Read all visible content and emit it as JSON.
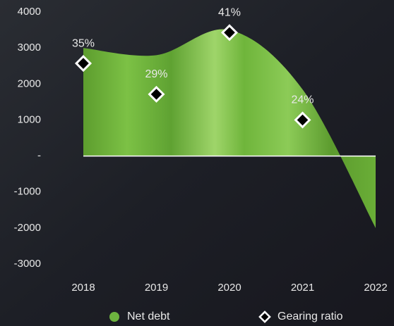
{
  "chart_data": {
    "type": "area",
    "categories": [
      "2018",
      "2019",
      "2020",
      "2021",
      "2022"
    ],
    "series": [
      {
        "name": "Net debt",
        "color": "#6db33f",
        "values": [
          3000,
          2800,
          3500,
          1850,
          -2000
        ]
      },
      {
        "name": "Gearing ratio",
        "color": "#000000",
        "type": "scatter",
        "axis": "y2",
        "marker": "diamond",
        "values": [
          35,
          29,
          41,
          24,
          null
        ],
        "value_labels": [
          "35%",
          "29%",
          "41%",
          "24%",
          null
        ]
      }
    ],
    "ylim": [
      -3000,
      4000
    ],
    "yticks": [
      -3000,
      -2000,
      -1000,
      {
        "value": 0,
        "label": "-"
      },
      1000,
      2000,
      3000,
      4000
    ],
    "y2lim": [
      -4,
      45
    ],
    "smooth": true,
    "grid": false
  }
}
